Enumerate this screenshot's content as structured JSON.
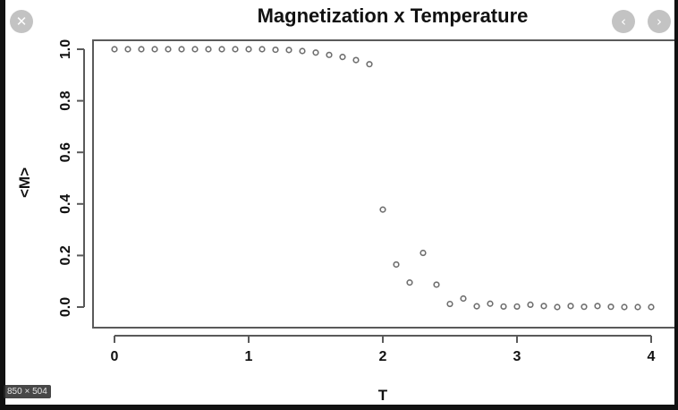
{
  "viewer": {
    "close_icon": "close-icon",
    "prev_icon": "chevron-left-icon",
    "next_icon": "chevron-right-icon",
    "dimensions_label": "850 × 504"
  },
  "chart_data": {
    "type": "scatter",
    "title": "Magnetization x Temperature",
    "xlabel": "T",
    "ylabel": "<M>",
    "xlim": [
      0,
      4
    ],
    "ylim": [
      0,
      1.0
    ],
    "xticks": [
      "0",
      "1",
      "2",
      "3",
      "4"
    ],
    "yticks": [
      "0.0",
      "0.2",
      "0.4",
      "0.6",
      "0.8",
      "1.0"
    ],
    "grid": false,
    "marker": "open-circle",
    "point_color": "#6f6f6f",
    "x": [
      0.0,
      0.1,
      0.2,
      0.3,
      0.4,
      0.5,
      0.6,
      0.7,
      0.8,
      0.9,
      1.0,
      1.1,
      1.2,
      1.3,
      1.4,
      1.5,
      1.6,
      1.7,
      1.8,
      1.9,
      2.0,
      2.1,
      2.2,
      2.3,
      2.4,
      2.5,
      2.6,
      2.7,
      2.8,
      2.9,
      3.0,
      3.1,
      3.2,
      3.3,
      3.4,
      3.5,
      3.6,
      3.7,
      3.8,
      3.9,
      4.0
    ],
    "y": [
      1.0,
      1.0,
      1.0,
      1.0,
      1.0,
      1.0,
      1.0,
      1.0,
      1.0,
      1.0,
      1.0,
      1.0,
      0.998,
      0.997,
      0.993,
      0.987,
      0.978,
      0.97,
      0.958,
      0.942,
      0.378,
      0.165,
      0.095,
      0.21,
      0.087,
      0.012,
      0.033,
      0.003,
      0.013,
      0.002,
      0.002,
      0.009,
      0.004,
      0.0,
      0.004,
      0.001,
      0.004,
      0.001,
      0.0,
      0.0,
      0.0
    ]
  }
}
